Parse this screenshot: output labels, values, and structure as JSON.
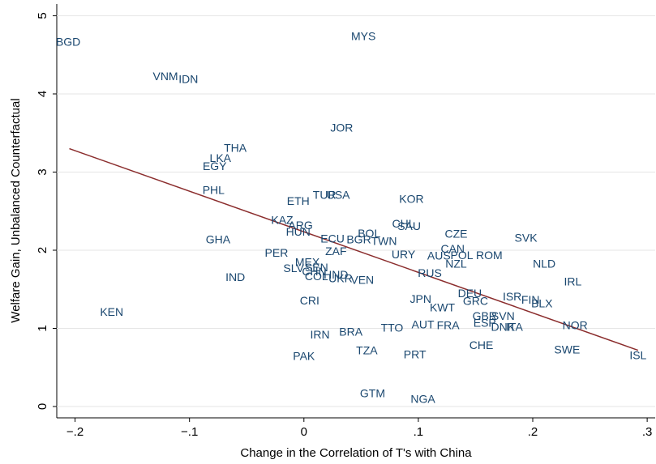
{
  "chart_data": {
    "type": "scatter",
    "x_label": "Change in the Correlation of T's with China",
    "y_label": "Welfare Gain, Unbalanced Counterfactual",
    "xlim": [
      -0.216,
      0.307
    ],
    "ylim": [
      -0.145,
      5.15
    ],
    "xticks": [
      {
        "value": -0.2,
        "label": "−.2"
      },
      {
        "value": -0.1,
        "label": "−.1"
      },
      0,
      {
        "value": 0.1,
        "label": ".1"
      },
      {
        "value": 0.2,
        "label": ".2"
      },
      {
        "value": 0.3,
        "label": ".3"
      }
    ],
    "yticks": [
      0,
      1,
      2,
      3,
      4,
      5
    ],
    "grid": true,
    "point_color": "#1a476f",
    "line_color": "#8b2d2d",
    "points": {
      "labels": [
        "BGD",
        "MYS",
        "VNM",
        "IDN",
        "JOR",
        "THA",
        "LKA",
        "EGY",
        "PHL",
        "ETH",
        "TUR",
        "USA",
        "KOR",
        "KAZ",
        "ARG",
        "HUN",
        "GHA",
        "ECU",
        "BOL",
        "BGR",
        "TWN",
        "CHL",
        "SAU",
        "CZE",
        "SVK",
        "PER",
        "ZAF",
        "URY",
        "CAN",
        "AUS",
        "POL",
        "ROM",
        "NZL",
        "NLD",
        "MEX",
        "SLV",
        "SEN",
        "RUS",
        "IND",
        "COL",
        "CHN",
        "HND",
        "UKR",
        "VEN",
        "IRL",
        "CRI",
        "JPN",
        "DEU",
        "GRC",
        "ISR",
        "FIN",
        "BLX",
        "KWT",
        "KEN",
        "AUT",
        "FRA",
        "GBR",
        "SVN",
        "ESP",
        "DNK",
        "ITA",
        "NOR",
        "TTO",
        "BRA",
        "IRN",
        "CHE",
        "SWE",
        "ISL",
        "PAK",
        "TZA",
        "PRT",
        "GTM",
        "NGA"
      ],
      "x": [
        -0.206,
        0.052,
        -0.121,
        -0.101,
        0.033,
        -0.06,
        -0.073,
        -0.078,
        -0.079,
        -0.005,
        0.018,
        0.03,
        0.094,
        -0.019,
        -0.003,
        -0.005,
        -0.075,
        0.025,
        0.057,
        0.048,
        0.07,
        0.087,
        0.092,
        0.133,
        0.194,
        -0.024,
        0.028,
        0.087,
        0.13,
        0.118,
        0.138,
        0.162,
        0.133,
        0.21,
        0.003,
        -0.009,
        0.011,
        0.11,
        -0.06,
        0.011,
        0.009,
        0.028,
        0.032,
        0.051,
        0.235,
        0.005,
        0.102,
        0.145,
        0.15,
        0.182,
        0.198,
        0.208,
        0.121,
        -0.168,
        0.104,
        0.126,
        0.158,
        0.174,
        0.158,
        0.174,
        0.184,
        0.237,
        0.077,
        0.041,
        0.014,
        0.155,
        0.23,
        0.292,
        0.0,
        0.055,
        0.097,
        0.06,
        0.104
      ],
      "y": [
        4.67,
        4.74,
        4.23,
        4.19,
        3.57,
        3.31,
        3.18,
        3.08,
        2.77,
        2.63,
        2.71,
        2.71,
        2.66,
        2.39,
        2.32,
        2.24,
        2.14,
        2.15,
        2.22,
        2.14,
        2.12,
        2.34,
        2.31,
        2.21,
        2.16,
        1.97,
        1.99,
        1.95,
        2.02,
        1.93,
        1.94,
        1.94,
        1.83,
        1.83,
        1.85,
        1.77,
        1.78,
        1.71,
        1.66,
        1.67,
        1.73,
        1.69,
        1.64,
        1.62,
        1.6,
        1.36,
        1.38,
        1.45,
        1.35,
        1.41,
        1.37,
        1.32,
        1.27,
        1.21,
        1.05,
        1.04,
        1.16,
        1.16,
        1.07,
        1.02,
        1.02,
        1.04,
        1.01,
        0.96,
        0.92,
        0.79,
        0.73,
        0.66,
        0.65,
        0.72,
        0.67,
        0.17,
        0.1
      ]
    },
    "fit_line": {
      "x": [
        -0.205,
        0.292
      ],
      "y": [
        3.3,
        0.72
      ]
    }
  }
}
